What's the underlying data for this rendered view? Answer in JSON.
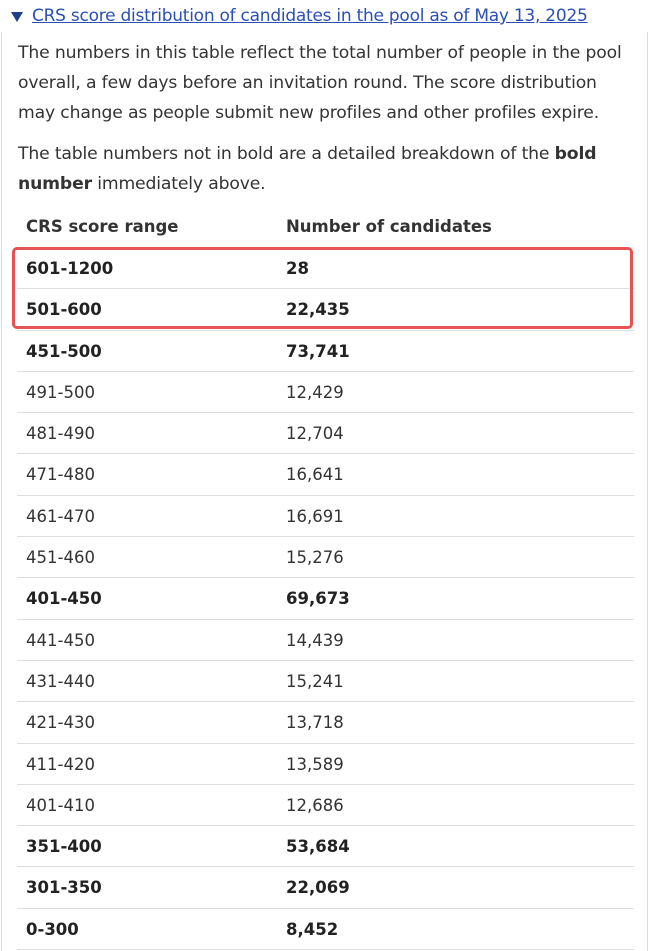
{
  "summary": {
    "label": "CRS score distribution of candidates in the pool as of May 13, 2025"
  },
  "intro": {
    "paragraph1": "The numbers in this table reflect the total number of people in the pool overall, a few days before an invitation round. The score distribution may change as people submit new profiles and other profiles expire.",
    "paragraph2_prefix": "The table numbers not in bold are a detailed breakdown of the ",
    "paragraph2_bold": "bold number",
    "paragraph2_suffix": " immediately above."
  },
  "table": {
    "headers": {
      "range": "CRS score range",
      "count": "Number of candidates"
    },
    "rows": [
      {
        "range": "601-1200",
        "count": "28",
        "bold": true
      },
      {
        "range": "501-600",
        "count": "22,435",
        "bold": true
      },
      {
        "range": "451-500",
        "count": "73,741",
        "bold": true
      },
      {
        "range": "491-500",
        "count": "12,429",
        "bold": false
      },
      {
        "range": "481-490",
        "count": "12,704",
        "bold": false
      },
      {
        "range": "471-480",
        "count": "16,641",
        "bold": false
      },
      {
        "range": "461-470",
        "count": "16,691",
        "bold": false
      },
      {
        "range": "451-460",
        "count": "15,276",
        "bold": false
      },
      {
        "range": "401-450",
        "count": "69,673",
        "bold": true
      },
      {
        "range": "441-450",
        "count": "14,439",
        "bold": false
      },
      {
        "range": "431-440",
        "count": "15,241",
        "bold": false
      },
      {
        "range": "421-430",
        "count": "13,718",
        "bold": false
      },
      {
        "range": "411-420",
        "count": "13,589",
        "bold": false
      },
      {
        "range": "401-410",
        "count": "12,686",
        "bold": false
      },
      {
        "range": "351-400",
        "count": "53,684",
        "bold": true
      },
      {
        "range": "301-350",
        "count": "22,069",
        "bold": true
      },
      {
        "range": "0-300",
        "count": "8,452",
        "bold": true
      }
    ]
  },
  "colors": {
    "link": "#2b4fb3",
    "triangle": "#1f3e8a",
    "highlight_border": "#e55353",
    "row_divider": "#dedede",
    "text": "#333333"
  },
  "icons": {
    "summary_toggle": "triangle-down-icon"
  }
}
